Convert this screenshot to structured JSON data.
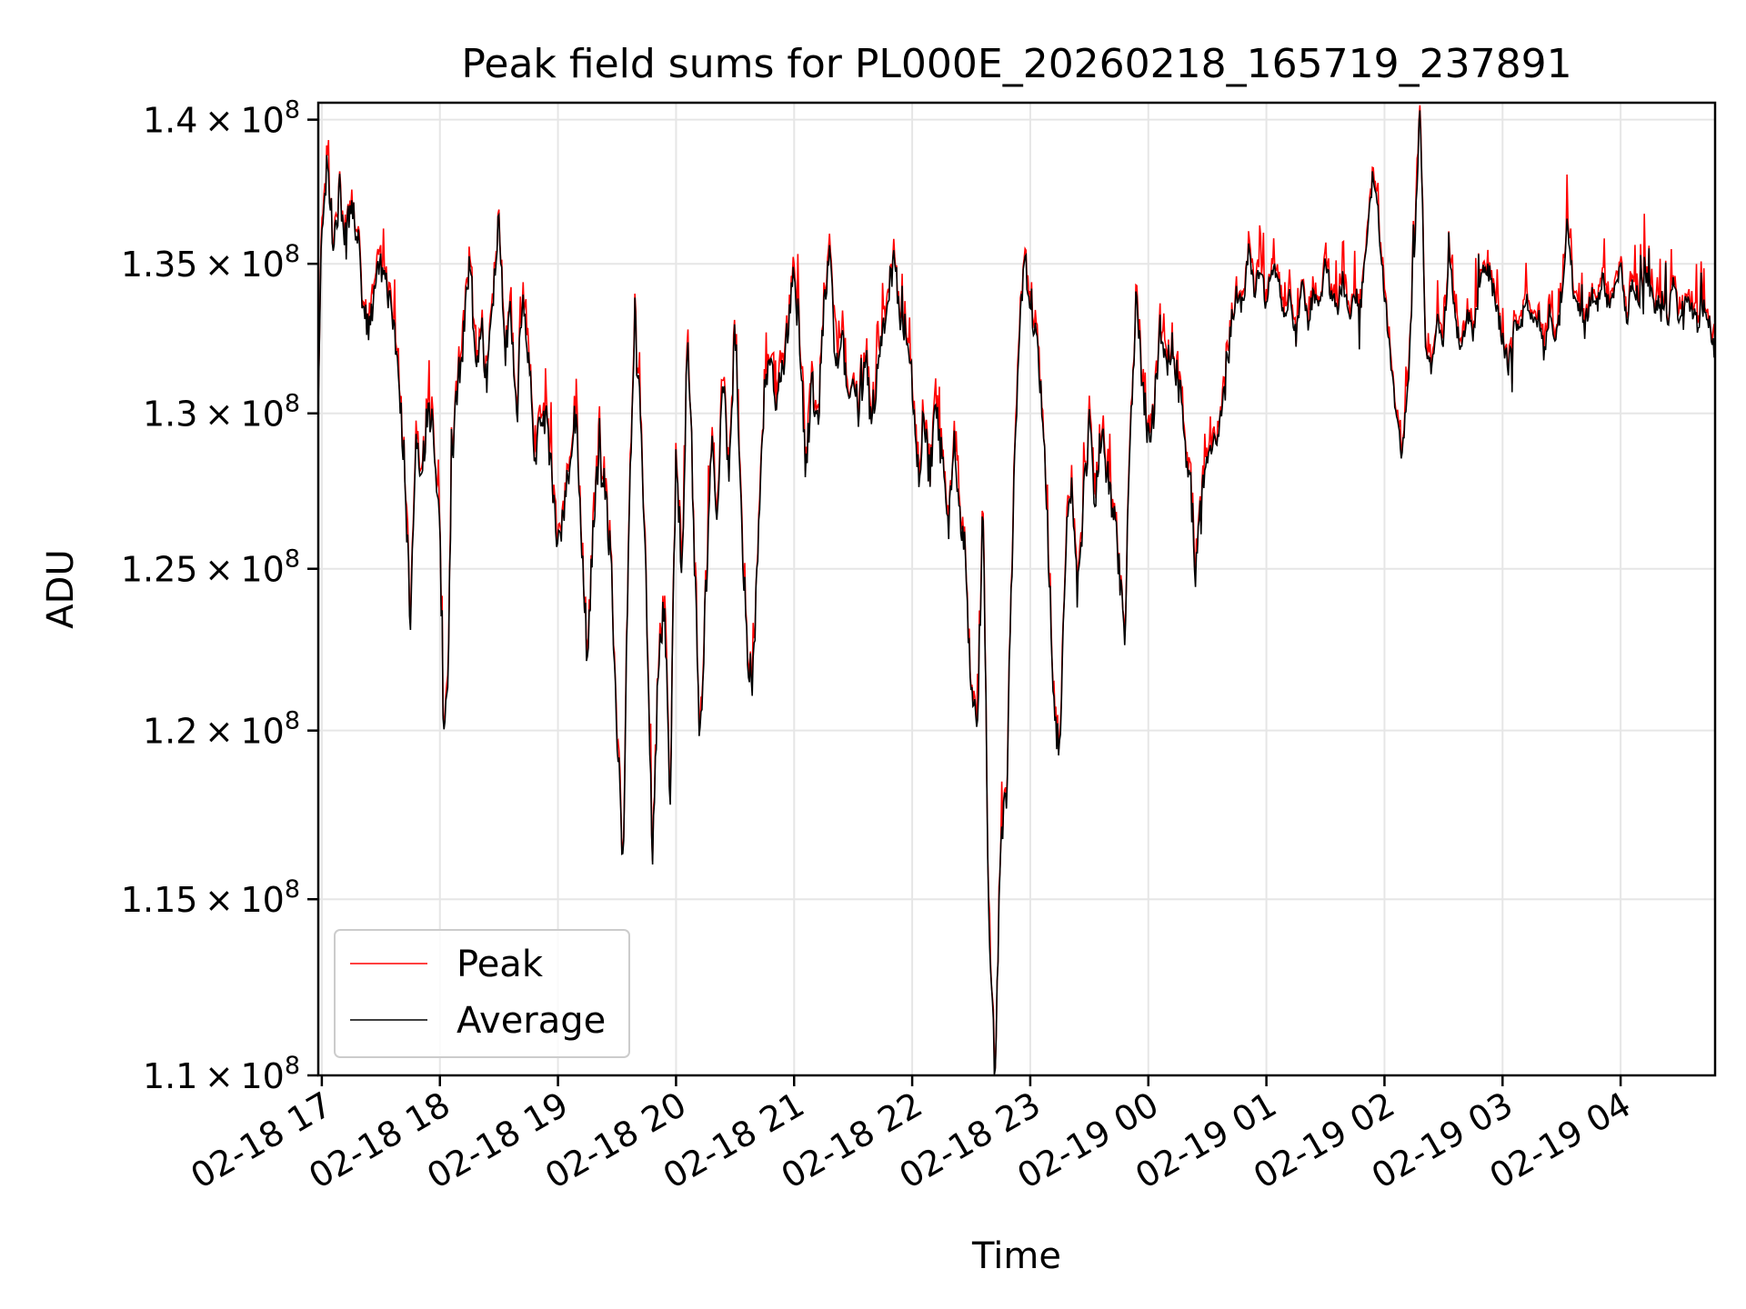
{
  "chart_data": {
    "type": "line",
    "title": "Peak field sums for PL000E_20260218_165719_237891",
    "xlabel": "Time",
    "ylabel": "ADU",
    "grid": true,
    "legend_position": "lower-left",
    "x_range_hours": [
      16.97,
      28.8
    ],
    "ylim": [
      110000000,
      140600000
    ],
    "yscale": "log",
    "x_ticks": [
      {
        "hour": 17,
        "label": "02-18 17"
      },
      {
        "hour": 18,
        "label": "02-18 18"
      },
      {
        "hour": 19,
        "label": "02-18 19"
      },
      {
        "hour": 20,
        "label": "02-18 20"
      },
      {
        "hour": 21,
        "label": "02-18 21"
      },
      {
        "hour": 22,
        "label": "02-18 22"
      },
      {
        "hour": 23,
        "label": "02-18 23"
      },
      {
        "hour": 24,
        "label": "02-19 00"
      },
      {
        "hour": 25,
        "label": "02-19 01"
      },
      {
        "hour": 26,
        "label": "02-19 02"
      },
      {
        "hour": 27,
        "label": "02-19 03"
      },
      {
        "hour": 28,
        "label": "02-19 04"
      }
    ],
    "y_ticks": [
      {
        "value": 110000000,
        "mant": "1.1"
      },
      {
        "value": 115000000,
        "mant": "1.15"
      },
      {
        "value": 120000000,
        "mant": "1.2"
      },
      {
        "value": 125000000,
        "mant": "1.25"
      },
      {
        "value": 130000000,
        "mant": "1.3"
      },
      {
        "value": 135000000,
        "mant": "1.35"
      },
      {
        "value": 140000000,
        "mant": "1.4"
      }
    ],
    "tick_format": {
      "times": "×",
      "base": "10",
      "exp": "8"
    },
    "series": [
      {
        "name": "Peak",
        "color": "#ff0000"
      },
      {
        "name": "Average",
        "color": "#000000"
      }
    ],
    "average_keypoints": [
      [
        16.97,
        130.0
      ],
      [
        17.0,
        136.5
      ],
      [
        17.05,
        138.5
      ],
      [
        17.1,
        135.5
      ],
      [
        17.15,
        137.5
      ],
      [
        17.2,
        136.0
      ],
      [
        17.25,
        137.0
      ],
      [
        17.3,
        136.0
      ],
      [
        17.35,
        133.5
      ],
      [
        17.4,
        132.5
      ],
      [
        17.45,
        134.5
      ],
      [
        17.5,
        135.0
      ],
      [
        17.55,
        134.0
      ],
      [
        17.6,
        133.0
      ],
      [
        17.65,
        131.0
      ],
      [
        17.7,
        128.5
      ],
      [
        17.75,
        123.0
      ],
      [
        17.8,
        129.5
      ],
      [
        17.85,
        128.0
      ],
      [
        17.9,
        130.5
      ],
      [
        17.95,
        129.0
      ],
      [
        18.0,
        126.0
      ],
      [
        18.03,
        120.0
      ],
      [
        18.07,
        122.0
      ],
      [
        18.1,
        128.0
      ],
      [
        18.15,
        131.0
      ],
      [
        18.2,
        132.5
      ],
      [
        18.25,
        135.0
      ],
      [
        18.3,
        131.5
      ],
      [
        18.35,
        133.0
      ],
      [
        18.4,
        131.0
      ],
      [
        18.45,
        134.0
      ],
      [
        18.5,
        136.5
      ],
      [
        18.55,
        132.0
      ],
      [
        18.6,
        133.5
      ],
      [
        18.65,
        130.0
      ],
      [
        18.7,
        134.0
      ],
      [
        18.75,
        132.0
      ],
      [
        18.8,
        128.5
      ],
      [
        18.85,
        130.0
      ],
      [
        18.9,
        129.5
      ],
      [
        18.95,
        128.0
      ],
      [
        19.0,
        125.5
      ],
      [
        19.05,
        127.0
      ],
      [
        19.1,
        128.5
      ],
      [
        19.15,
        130.0
      ],
      [
        19.2,
        126.0
      ],
      [
        19.25,
        122.0
      ],
      [
        19.3,
        126.5
      ],
      [
        19.35,
        129.0
      ],
      [
        19.4,
        127.5
      ],
      [
        19.45,
        125.0
      ],
      [
        19.5,
        120.0
      ],
      [
        19.55,
        116.0
      ],
      [
        19.6,
        126.0
      ],
      [
        19.65,
        133.5
      ],
      [
        19.7,
        129.5
      ],
      [
        19.75,
        124.0
      ],
      [
        19.8,
        116.0
      ],
      [
        19.85,
        122.0
      ],
      [
        19.9,
        124.0
      ],
      [
        19.95,
        118.0
      ],
      [
        20.0,
        128.5
      ],
      [
        20.05,
        125.0
      ],
      [
        20.1,
        133.0
      ],
      [
        20.15,
        126.0
      ],
      [
        20.2,
        119.5
      ],
      [
        20.25,
        124.0
      ],
      [
        20.3,
        129.0
      ],
      [
        20.35,
        127.0
      ],
      [
        20.4,
        131.0
      ],
      [
        20.45,
        128.0
      ],
      [
        20.5,
        133.0
      ],
      [
        20.55,
        127.0
      ],
      [
        20.6,
        122.5
      ],
      [
        20.65,
        121.5
      ],
      [
        20.7,
        126.0
      ],
      [
        20.75,
        131.0
      ],
      [
        20.8,
        132.0
      ],
      [
        20.85,
        130.0
      ],
      [
        20.9,
        131.5
      ],
      [
        20.95,
        133.0
      ],
      [
        21.0,
        134.5
      ],
      [
        21.05,
        132.5
      ],
      [
        21.1,
        128.0
      ],
      [
        21.15,
        131.0
      ],
      [
        21.2,
        129.5
      ],
      [
        21.25,
        133.5
      ],
      [
        21.3,
        135.5
      ],
      [
        21.35,
        131.5
      ],
      [
        21.4,
        133.0
      ],
      [
        21.45,
        130.5
      ],
      [
        21.5,
        131.0
      ],
      [
        21.55,
        130.0
      ],
      [
        21.6,
        131.5
      ],
      [
        21.65,
        130.0
      ],
      [
        21.7,
        131.0
      ],
      [
        21.75,
        132.5
      ],
      [
        21.8,
        134.0
      ],
      [
        21.85,
        135.0
      ],
      [
        21.9,
        133.0
      ],
      [
        21.95,
        132.0
      ],
      [
        22.0,
        131.0
      ],
      [
        22.05,
        128.0
      ],
      [
        22.1,
        129.5
      ],
      [
        22.15,
        128.0
      ],
      [
        22.2,
        130.0
      ],
      [
        22.25,
        128.5
      ],
      [
        22.3,
        126.5
      ],
      [
        22.35,
        129.0
      ],
      [
        22.4,
        127.0
      ],
      [
        22.45,
        125.5
      ],
      [
        22.5,
        121.0
      ],
      [
        22.55,
        120.0
      ],
      [
        22.6,
        127.0
      ],
      [
        22.65,
        114.0
      ],
      [
        22.7,
        110.0
      ],
      [
        22.75,
        117.0
      ],
      [
        22.8,
        118.0
      ],
      [
        22.85,
        126.0
      ],
      [
        22.9,
        132.0
      ],
      [
        22.95,
        135.0
      ],
      [
        23.0,
        134.0
      ],
      [
        23.05,
        132.5
      ],
      [
        23.1,
        130.0
      ],
      [
        23.15,
        126.0
      ],
      [
        23.2,
        120.5
      ],
      [
        23.25,
        119.5
      ],
      [
        23.3,
        125.0
      ],
      [
        23.35,
        128.0
      ],
      [
        23.4,
        124.0
      ],
      [
        23.45,
        127.0
      ],
      [
        23.5,
        129.5
      ],
      [
        23.55,
        127.0
      ],
      [
        23.6,
        129.5
      ],
      [
        23.65,
        128.0
      ],
      [
        23.7,
        127.0
      ],
      [
        23.75,
        125.0
      ],
      [
        23.8,
        123.0
      ],
      [
        23.85,
        129.5
      ],
      [
        23.9,
        134.0
      ],
      [
        23.95,
        131.0
      ],
      [
        24.0,
        129.0
      ],
      [
        24.05,
        130.0
      ],
      [
        24.1,
        133.0
      ],
      [
        24.15,
        131.5
      ],
      [
        24.2,
        132.5
      ],
      [
        24.25,
        131.0
      ],
      [
        24.3,
        130.0
      ],
      [
        24.35,
        128.0
      ],
      [
        24.4,
        125.0
      ],
      [
        24.45,
        127.5
      ],
      [
        24.5,
        128.5
      ],
      [
        24.55,
        129.0
      ],
      [
        24.6,
        129.5
      ],
      [
        24.65,
        131.0
      ],
      [
        24.7,
        133.0
      ],
      [
        24.75,
        134.0
      ],
      [
        24.8,
        133.5
      ],
      [
        24.85,
        135.5
      ],
      [
        24.9,
        134.0
      ],
      [
        24.95,
        135.0
      ],
      [
        25.0,
        133.5
      ],
      [
        25.05,
        135.0
      ],
      [
        25.1,
        134.5
      ],
      [
        25.15,
        133.0
      ],
      [
        25.2,
        134.0
      ],
      [
        25.25,
        132.5
      ],
      [
        25.3,
        134.5
      ],
      [
        25.35,
        133.0
      ],
      [
        25.4,
        134.0
      ],
      [
        25.45,
        133.5
      ],
      [
        25.5,
        135.0
      ],
      [
        25.55,
        134.0
      ],
      [
        25.6,
        133.5
      ],
      [
        25.65,
        134.5
      ],
      [
        25.7,
        133.0
      ],
      [
        25.75,
        134.0
      ],
      [
        25.8,
        133.5
      ],
      [
        25.85,
        136.0
      ],
      [
        25.9,
        138.0
      ],
      [
        25.95,
        136.5
      ],
      [
        26.0,
        134.0
      ],
      [
        26.05,
        132.0
      ],
      [
        26.1,
        130.0
      ],
      [
        26.15,
        128.5
      ],
      [
        26.2,
        131.0
      ],
      [
        26.25,
        135.0
      ],
      [
        26.3,
        140.6
      ],
      [
        26.35,
        132.0
      ],
      [
        26.4,
        131.5
      ],
      [
        26.45,
        133.0
      ],
      [
        26.5,
        132.5
      ],
      [
        26.55,
        135.5
      ],
      [
        26.6,
        133.0
      ],
      [
        26.65,
        132.0
      ],
      [
        26.7,
        133.5
      ],
      [
        26.75,
        132.5
      ],
      [
        26.8,
        134.0
      ],
      [
        26.85,
        135.0
      ],
      [
        26.9,
        134.5
      ],
      [
        26.95,
        133.5
      ],
      [
        27.0,
        132.5
      ],
      [
        27.05,
        131.5
      ],
      [
        27.1,
        133.0
      ],
      [
        27.15,
        132.5
      ],
      [
        27.2,
        134.0
      ],
      [
        27.25,
        133.0
      ],
      [
        27.3,
        133.5
      ],
      [
        27.35,
        132.0
      ],
      [
        27.4,
        133.5
      ],
      [
        27.45,
        132.5
      ],
      [
        27.5,
        134.0
      ],
      [
        27.55,
        136.5
      ],
      [
        27.6,
        134.0
      ],
      [
        27.65,
        133.5
      ],
      [
        27.7,
        133.0
      ],
      [
        27.75,
        134.0
      ],
      [
        27.8,
        133.5
      ],
      [
        27.85,
        134.5
      ],
      [
        27.9,
        133.5
      ],
      [
        27.95,
        134.0
      ],
      [
        28.0,
        135.0
      ],
      [
        28.05,
        133.0
      ],
      [
        28.1,
        134.5
      ],
      [
        28.15,
        133.5
      ],
      [
        28.2,
        135.0
      ],
      [
        28.25,
        134.0
      ],
      [
        28.3,
        133.5
      ],
      [
        28.35,
        134.0
      ],
      [
        28.4,
        133.0
      ],
      [
        28.45,
        134.5
      ],
      [
        28.5,
        133.0
      ],
      [
        28.55,
        134.0
      ],
      [
        28.6,
        133.5
      ],
      [
        28.65,
        133.0
      ],
      [
        28.7,
        133.5
      ],
      [
        28.75,
        133.0
      ],
      [
        28.8,
        132.0
      ]
    ]
  }
}
